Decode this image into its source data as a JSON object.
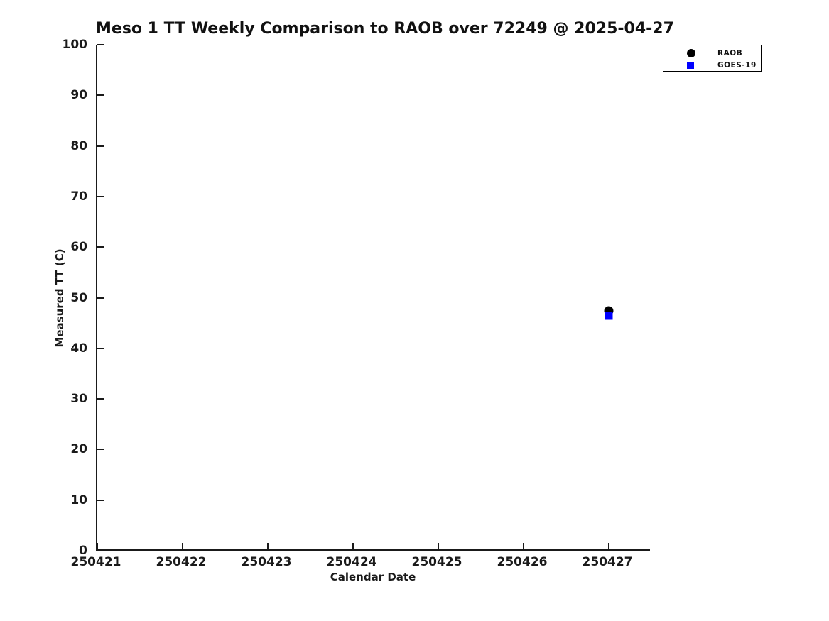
{
  "colors": {
    "axis": "#1a1a1a",
    "raob_marker": "#000000",
    "goes_marker": "#0000ff",
    "background": "#ffffff"
  },
  "chart_data": {
    "type": "scatter",
    "title": "Meso 1 TT Weekly Comparison to RAOB over 72249 @ 2025-04-27",
    "xlabel": "Calendar Date",
    "ylabel": "Measured TT (C)",
    "x_tick_labels": [
      "250421",
      "250422",
      "250423",
      "250424",
      "250425",
      "250426",
      "250427"
    ],
    "y_ticks": [
      0,
      10,
      20,
      30,
      40,
      50,
      60,
      70,
      80,
      90,
      100
    ],
    "ylim": [
      0,
      100
    ],
    "xlim_tick_units": [
      0,
      6.5
    ],
    "grid": false,
    "legend_position": "top-right",
    "series": [
      {
        "name": "RAOB",
        "marker": "circle",
        "color": "#000000",
        "points": [
          {
            "x": "250427",
            "y": 47.4
          }
        ]
      },
      {
        "name": "GOES-19",
        "marker": "square",
        "color": "#0000ff",
        "points": [
          {
            "x": "250427",
            "y": 46.4
          }
        ]
      }
    ]
  }
}
